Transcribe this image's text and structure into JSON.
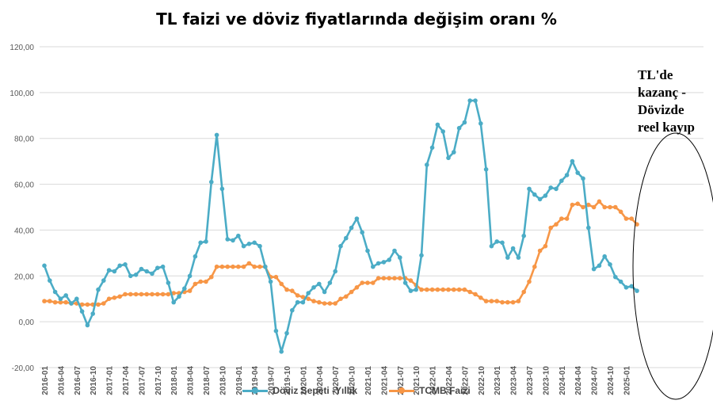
{
  "colors": {
    "series_1": "#4BACC6",
    "series_2": "#F79646",
    "grid": "#d9d9d9",
    "axis_text": "#595959"
  },
  "chart_data": {
    "type": "line",
    "title": "TL faizi ve döviz fiyatlarında değişim oranı %",
    "ylim": [
      -20,
      120
    ],
    "y_ticks": [
      "-20,00",
      "0,00",
      "20,00",
      "40,00",
      "60,00",
      "80,00",
      "100,00",
      "120,00"
    ],
    "grid": true,
    "legend_position": "bottom",
    "x_tick_labels": [
      "2016-01",
      "2016-04",
      "2016-07",
      "2016-10",
      "2017-01",
      "2017-04",
      "2017-07",
      "2017-10",
      "2018-01",
      "2018-04",
      "2018-07",
      "2018-10",
      "2019-01",
      "2019-04",
      "2019-07",
      "2019-10",
      "2020-01",
      "2020-04",
      "2020-07",
      "2020-10",
      "2021-01",
      "2021-04",
      "2021-07",
      "2021-10",
      "2022-01",
      "2022-04",
      "2022-07",
      "2022-10",
      "2023-01",
      "2023-04",
      "2023-07",
      "2023-10",
      "2024-01",
      "2024-04",
      "2024-07",
      "2024-10",
      "2025-01"
    ],
    "x_start": "2016-01",
    "series": [
      {
        "name": "Döviz Sepeti -Yıllık",
        "values": [
          24.5,
          18.0,
          13.0,
          10.0,
          11.5,
          8.0,
          10.0,
          4.5,
          -1.5,
          3.5,
          14.0,
          18.0,
          22.5,
          22.0,
          24.5,
          25.0,
          20.0,
          20.5,
          23.0,
          22.0,
          21.0,
          23.5,
          24.0,
          17.0,
          8.5,
          11.0,
          14.5,
          20.0,
          28.5,
          34.5,
          35.0,
          61.0,
          81.5,
          58.0,
          36.0,
          35.5,
          37.5,
          33.0,
          34.0,
          34.5,
          33.0,
          24.0,
          17.5,
          -4.0,
          -13.0,
          -5.0,
          5.0,
          8.5,
          8.5,
          12.5,
          15.0,
          16.5,
          13.0,
          17.0,
          22.0,
          33.0,
          36.5,
          41.0,
          45.0,
          39.0,
          31.0,
          24.0,
          25.5,
          26.0,
          27.0,
          31.0,
          28.0,
          17.0,
          13.5,
          14.0,
          29.0,
          68.5,
          76.0,
          86.0,
          83.0,
          71.5,
          74.0,
          84.5,
          87.0,
          96.5,
          96.5,
          86.5,
          66.5,
          33.0,
          35.0,
          34.5,
          28.0,
          32.0,
          28.0,
          37.5,
          58.0,
          55.5,
          53.5,
          55.0,
          58.5,
          58.0,
          61.5,
          64.0,
          70.0,
          65.0,
          62.5,
          41.0,
          23.0,
          24.5,
          28.5,
          25.0,
          19.5,
          17.5,
          15.0,
          15.5,
          13.5
        ]
      },
      {
        "name": "TCMB Faizi",
        "values": [
          9.0,
          9.0,
          8.5,
          8.5,
          8.5,
          8.0,
          8.0,
          7.5,
          7.5,
          7.5,
          7.5,
          8.0,
          10.0,
          10.5,
          11.0,
          12.0,
          12.0,
          12.0,
          12.0,
          12.0,
          12.0,
          12.0,
          12.0,
          12.0,
          12.5,
          12.5,
          13.0,
          13.5,
          16.5,
          17.5,
          17.5,
          19.5,
          24.0,
          24.0,
          24.0,
          24.0,
          24.0,
          24.0,
          25.5,
          24.0,
          24.0,
          24.0,
          19.5,
          19.5,
          16.5,
          14.0,
          13.5,
          11.5,
          10.75,
          10.0,
          9.0,
          8.5,
          8.0,
          8.0,
          8.0,
          10.0,
          11.0,
          13.0,
          15.0,
          17.0,
          17.0,
          17.0,
          19.0,
          19.0,
          19.0,
          19.0,
          19.0,
          19.0,
          18.0,
          16.0,
          14.0,
          14.0,
          14.0,
          14.0,
          14.0,
          14.0,
          14.0,
          14.0,
          14.0,
          13.0,
          12.0,
          10.5,
          9.0,
          9.0,
          9.0,
          8.5,
          8.5,
          8.5,
          9.0,
          13.0,
          17.5,
          24.0,
          31.0,
          33.0,
          41.0,
          42.5,
          45.0,
          45.0,
          51.0,
          51.5,
          50.0,
          51.0,
          50.0,
          52.5,
          50.0,
          50.0,
          50.0,
          48.0,
          45.0,
          45.0,
          42.5
        ]
      }
    ],
    "annotation": {
      "lines": [
        "TL'de",
        "kazanç -",
        "Dövizde",
        "reel kayıp"
      ]
    }
  }
}
